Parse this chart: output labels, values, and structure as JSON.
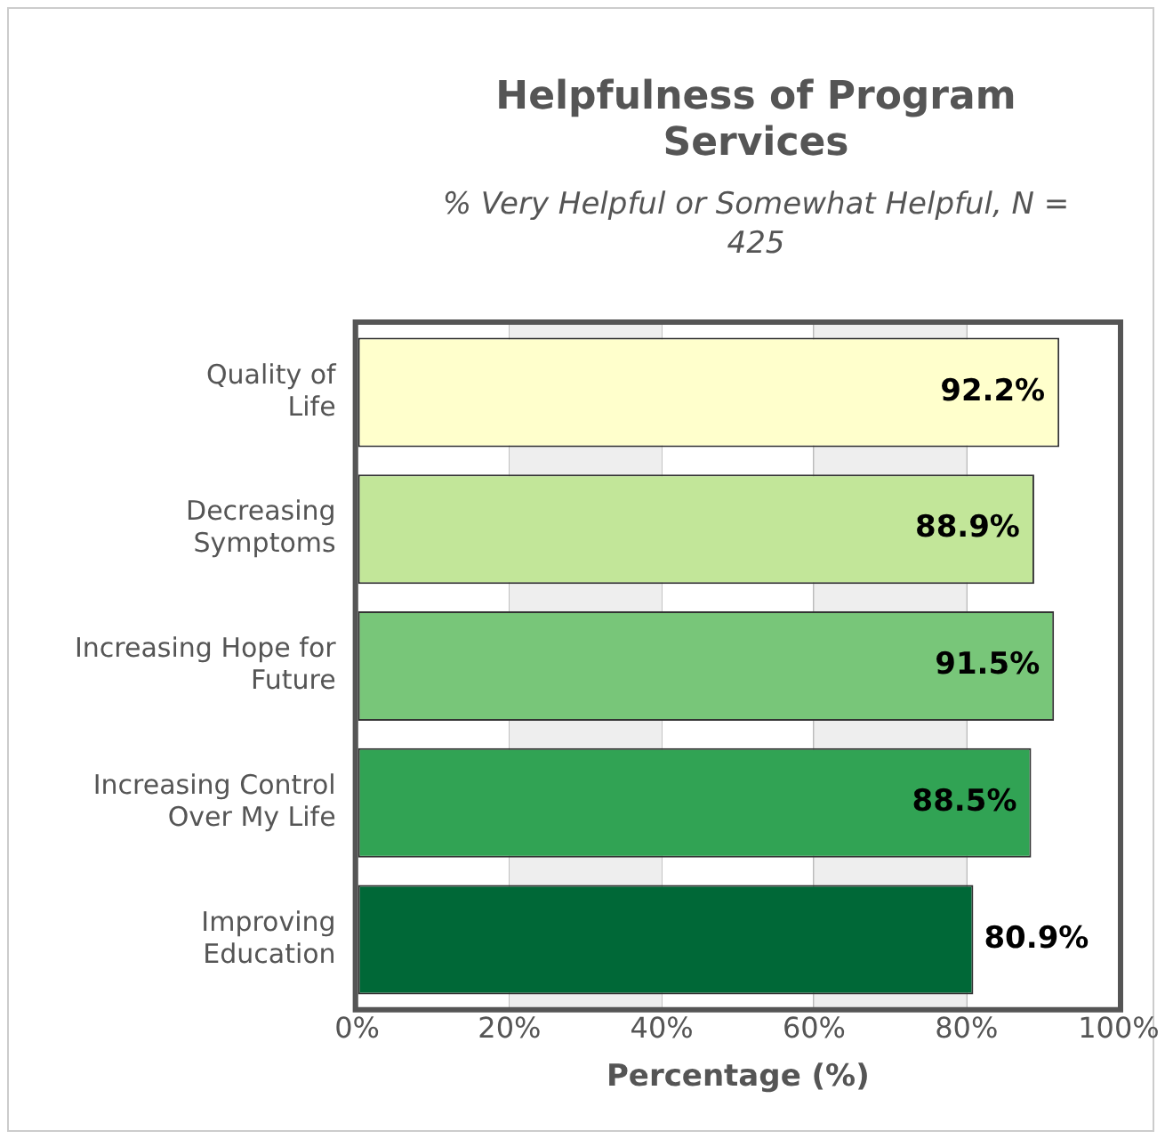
{
  "chart_data": {
    "type": "bar",
    "orientation": "horizontal",
    "title": "Helpfulness of Program Services",
    "subtitle": "% Very Helpful or Somewhat Helpful, N = 425",
    "xlabel": "Percentage (%)",
    "categories": [
      "Quality of Life",
      "Decreasing Symptoms",
      "Increasing Hope for Future",
      "Increasing Control Over My Life",
      "Improving Education"
    ],
    "values": [
      92.2,
      88.9,
      91.5,
      88.5,
      80.9
    ],
    "colors": [
      "#ffffcc",
      "#c2e699",
      "#78c679",
      "#31a354",
      "#006837"
    ],
    "value_labels": [
      "92.2%",
      "88.9%",
      "91.5%",
      "88.5%",
      "80.9%"
    ],
    "xlim": [
      0,
      100
    ],
    "xticks": [
      {
        "value": 0,
        "label": "0%"
      },
      {
        "value": 20,
        "label": "20%"
      },
      {
        "value": 40,
        "label": "40%"
      },
      {
        "value": 60,
        "label": "60%"
      },
      {
        "value": 80,
        "label": "80%"
      },
      {
        "value": 100,
        "label": "100%"
      }
    ],
    "bands": [
      {
        "axis": "x",
        "from": 20,
        "to": 40,
        "color": "#eeeeee"
      },
      {
        "axis": "x",
        "from": 60,
        "to": 80,
        "color": "#eeeeee"
      }
    ],
    "grid": "x",
    "legend": false
  }
}
